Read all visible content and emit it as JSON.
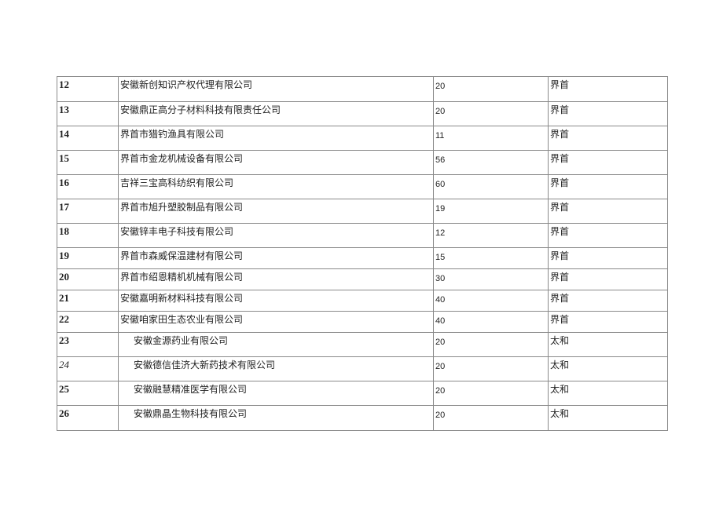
{
  "table": {
    "rows": [
      {
        "no": "12",
        "company": "安徽新创知识产权代理有限公司",
        "count": "20",
        "location": "界首"
      },
      {
        "no": "13",
        "company": "安徽鼎正高分子材料科技有限责任公司",
        "count": "20",
        "location": "界首"
      },
      {
        "no": "14",
        "company": "界首市猎钓渔具有限公司",
        "count": "11",
        "location": "界首"
      },
      {
        "no": "15",
        "company": "界首市金龙机械设备有限公司",
        "count": "56",
        "location": "界首"
      },
      {
        "no": "16",
        "company": "吉祥三宝高科纺织有限公司",
        "count": "60",
        "location": "界首"
      },
      {
        "no": "17",
        "company": "界首市旭升塑胶制品有限公司",
        "count": "19",
        "location": "界首"
      },
      {
        "no": "18",
        "company": "安徽锌丰电子科技有限公司",
        "count": "12",
        "location": "界首"
      },
      {
        "no": "19",
        "company": "界首市森威保温建材有限公司",
        "count": "15",
        "location": "界首"
      },
      {
        "no": "20",
        "company": "界首市绍恩精机机械有限公司",
        "count": "30",
        "location": "界首"
      },
      {
        "no": "21",
        "company": "安徽嘉明新材料科技有限公司",
        "count": "40",
        "location": "界首"
      },
      {
        "no": "22",
        "company": "安徽咱家田生态农业有限公司",
        "count": "40",
        "location": "界首"
      },
      {
        "no": "23",
        "company": "安徽金源药业有限公司",
        "count": "20",
        "location": "太和"
      },
      {
        "no": "24",
        "company": "安徽德信佳济大新药技术有限公司",
        "count": "20",
        "location": "太和"
      },
      {
        "no": "25",
        "company": "安徽融慧精准医学有限公司",
        "count": "20",
        "location": "太和"
      },
      {
        "no": "26",
        "company": "安徽鼎晶生物科技有限公司",
        "count": "20",
        "location": "太和"
      }
    ]
  }
}
